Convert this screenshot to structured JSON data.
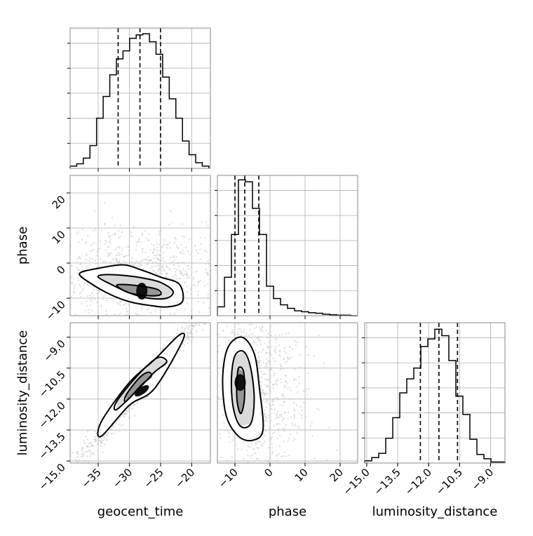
{
  "chart_data": {
    "type": "corner",
    "parameters": [
      "geocent_time",
      "phase",
      "luminosity_distance"
    ],
    "grid": true,
    "quantile_lines": "dashed",
    "axes": {
      "geocent_time": {
        "range": [
          -39.5,
          -17
        ],
        "ticks": [
          -35,
          -30,
          -25,
          -20
        ],
        "tick_labels": [
          "−35",
          "−30",
          "−25",
          "−20"
        ]
      },
      "phase": {
        "range": [
          -15,
          25
        ],
        "ticks": [
          -10,
          0,
          10,
          20
        ],
        "tick_labels": [
          "−10",
          "0",
          "10",
          "20"
        ]
      },
      "luminosity_distance": {
        "range": [
          -15.1,
          -8.3
        ],
        "ticks": [
          -15.0,
          -13.5,
          -12.0,
          -10.5,
          -9.0
        ],
        "tick_labels": [
          "−15.0",
          "−13.5",
          "−12.0",
          "−10.5",
          "−9.0"
        ]
      }
    },
    "panels": [
      {
        "id": "hist-geocent_time",
        "type": "histogram",
        "x": "geocent_time",
        "bin_edges": [
          -39.5,
          -38.44,
          -37.38,
          -36.32,
          -35.26,
          -34.2,
          -33.14,
          -32.08,
          -31.02,
          -29.96,
          -28.9,
          -27.84,
          -26.78,
          -25.72,
          -24.66,
          -23.6,
          -22.54,
          -21.48,
          -20.42,
          -19.36,
          -18.3,
          -17.24
        ],
        "counts": [
          2,
          4,
          9,
          20,
          44,
          63,
          82,
          96,
          103,
          114,
          117,
          118,
          111,
          100,
          80,
          61,
          44,
          24,
          12,
          5,
          2
        ],
        "ylim": [
          0,
          123
        ],
        "quantiles": [
          -31.8,
          -28.3,
          -25.0
        ]
      },
      {
        "id": "hist-phase",
        "type": "histogram",
        "x": "phase",
        "bin_edges": [
          -15,
          -13,
          -11,
          -9,
          -7,
          -5,
          -3,
          -1,
          1,
          3,
          5,
          7,
          9,
          11,
          13,
          15,
          17,
          19,
          21,
          23,
          25
        ],
        "counts": [
          18,
          78,
          165,
          276,
          272,
          218,
          165,
          60,
          35,
          22,
          15,
          10,
          8,
          6,
          5,
          3,
          2,
          1,
          1,
          0
        ],
        "ylim": [
          0,
          285
        ],
        "quantiles": [
          -10.0,
          -7.2,
          -3.2
        ]
      },
      {
        "id": "hist-luminosity_distance",
        "type": "histogram",
        "x": "luminosity_distance",
        "bin_edges": [
          -15.1,
          -14.76,
          -14.42,
          -14.08,
          -13.74,
          -13.4,
          -13.06,
          -12.72,
          -12.38,
          -12.04,
          -11.7,
          -11.36,
          -11.02,
          -10.68,
          -10.34,
          -10.0,
          -9.66,
          -9.32,
          -8.98,
          -8.64,
          -8.3
        ],
        "counts": [
          2,
          5,
          9,
          23,
          42,
          65,
          78,
          88,
          108,
          115,
          124,
          118,
          95,
          62,
          45,
          22,
          8,
          4,
          1,
          1
        ],
        "ylim": [
          0,
          130
        ],
        "quantiles": [
          -12.4,
          -11.5,
          -10.6
        ]
      },
      {
        "id": "scatter-geocent_time-phase",
        "type": "2d-density",
        "x": "geocent_time",
        "y": "phase",
        "peak": [
          -28,
          -8
        ],
        "contours": [
          [
            [
              -38,
              -3
            ],
            [
              -36,
              -6
            ],
            [
              -33,
              -9
            ],
            [
              -30,
              -11
            ],
            [
              -27,
              -12
            ],
            [
              -24,
              -12.5
            ],
            [
              -21.5,
              -11
            ],
            [
              -22,
              -6
            ],
            [
              -25,
              -4
            ],
            [
              -28,
              -2
            ],
            [
              -31,
              -0.5
            ],
            [
              -35,
              -1.5
            ]
          ],
          [
            [
              -35,
              -4
            ],
            [
              -33,
              -6
            ],
            [
              -30,
              -8.5
            ],
            [
              -27,
              -10
            ],
            [
              -24,
              -10
            ],
            [
              -23,
              -8
            ],
            [
              -25,
              -5.5
            ],
            [
              -28,
              -4.2
            ],
            [
              -31,
              -3.5
            ],
            [
              -34,
              -3.3
            ]
          ],
          [
            [
              -32,
              -6.5
            ],
            [
              -30,
              -8.5
            ],
            [
              -27,
              -9.3
            ],
            [
              -25,
              -9
            ],
            [
              -25.5,
              -7.5
            ],
            [
              -28,
              -6.6
            ],
            [
              -31,
              -6.1
            ]
          ]
        ]
      },
      {
        "id": "scatter-geocent_time-luminosity_distance",
        "type": "2d-density",
        "x": "geocent_time",
        "y": "luminosity_distance",
        "peak": [
          -28,
          -11.6
        ],
        "contours": [
          [
            [
              -34.5,
              -13.8
            ],
            [
              -30,
              -12.3
            ],
            [
              -26,
              -11.5
            ],
            [
              -21.5,
              -9.2
            ],
            [
              -22,
              -8.9
            ],
            [
              -26,
              -10.1
            ],
            [
              -30,
              -11.2
            ],
            [
              -34.5,
              -13.1
            ]
          ],
          [
            [
              -32,
              -12.5
            ],
            [
              -28.5,
              -11.5
            ],
            [
              -26,
              -10.7
            ],
            [
              -24,
              -10.2
            ],
            [
              -25.5,
              -10.0
            ],
            [
              -28.5,
              -10.8
            ],
            [
              -32,
              -12.1
            ]
          ],
          [
            [
              -30.5,
              -12.1
            ],
            [
              -28,
              -11.3
            ],
            [
              -26.5,
              -10.9
            ],
            [
              -27,
              -10.7
            ],
            [
              -28.5,
              -11.0
            ],
            [
              -30.5,
              -11.8
            ]
          ]
        ]
      },
      {
        "id": "scatter-phase-luminosity_distance",
        "type": "2d-density",
        "x": "phase",
        "y": "luminosity_distance",
        "peak": [
          -8.5,
          -11.2
        ],
        "contours": [
          [
            [
              -13.5,
              -11
            ],
            [
              -12,
              -9.5
            ],
            [
              -8,
              -9.0
            ],
            [
              -4.5,
              -9.8
            ],
            [
              -3,
              -11.5
            ],
            [
              -2,
              -13.5
            ],
            [
              -5,
              -14.0
            ],
            [
              -9,
              -13.8
            ],
            [
              -12.5,
              -12.8
            ]
          ],
          [
            [
              -11,
              -11
            ],
            [
              -10,
              -9.9
            ],
            [
              -7.5,
              -9.7
            ],
            [
              -5.5,
              -10.5
            ],
            [
              -4.5,
              -12
            ],
            [
              -5.5,
              -13.2
            ],
            [
              -8.5,
              -13.3
            ],
            [
              -10.5,
              -12.4
            ]
          ],
          [
            [
              -9.5,
              -11.4
            ],
            [
              -9,
              -10.5
            ],
            [
              -7.5,
              -10.7
            ],
            [
              -7.3,
              -12
            ],
            [
              -8.3,
              -12.7
            ],
            [
              -9.3,
              -12.2
            ]
          ]
        ]
      }
    ]
  }
}
